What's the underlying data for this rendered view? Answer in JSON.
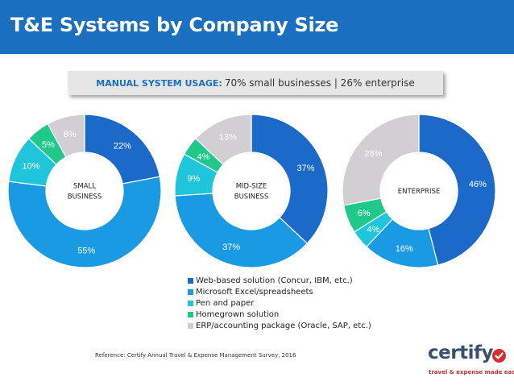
{
  "header": {
    "title": "T&E Systems by Company Size"
  },
  "banner": {
    "label": "MANUAL SYSTEM USAGE:",
    "text": "70% small businesses  |  26% enterprise"
  },
  "chart_data": [
    {
      "type": "pie",
      "variant": "donut",
      "title": "SMALL BUSINESS",
      "center_lines": [
        "SMALL",
        "BUSINESS"
      ],
      "categories": [
        "Web-based solution (Concur, IBM, etc.)",
        "Microsoft Excel/spreadsheets",
        "Pen and paper",
        "Homegrown solution",
        "ERP/accounting package (Oracle, SAP, etc.)"
      ],
      "values": [
        22,
        55,
        10,
        5,
        8
      ],
      "labels": [
        "22%",
        "55%",
        "10%",
        "5%",
        "8%"
      ]
    },
    {
      "type": "pie",
      "variant": "donut",
      "title": "MID-SIZE BUSINESS",
      "center_lines": [
        "MID-SIZE",
        "BUSINESS"
      ],
      "categories": [
        "Web-based solution (Concur, IBM, etc.)",
        "Microsoft Excel/spreadsheets",
        "Pen and paper",
        "Homegrown solution",
        "ERP/accounting package (Oracle, SAP, etc.)"
      ],
      "values": [
        37,
        37,
        9,
        4,
        13
      ],
      "labels": [
        "37%",
        "37%",
        "9%",
        "4%",
        "13%"
      ]
    },
    {
      "type": "pie",
      "variant": "donut",
      "title": "ENTERPRISE",
      "center_lines": [
        "ENTERPRISE"
      ],
      "categories": [
        "Web-based solution (Concur, IBM, etc.)",
        "Microsoft Excel/spreadsheets",
        "Pen and paper",
        "Homegrown solution",
        "ERP/accounting package (Oracle, SAP, etc.)"
      ],
      "values": [
        46,
        16,
        4,
        6,
        28
      ],
      "labels": [
        "46%",
        "16%",
        "4%",
        "6%",
        "28%"
      ]
    }
  ],
  "legend": {
    "items": [
      {
        "label": "Web-based solution (Concur, IBM, etc.)",
        "color": "#1b6ac9"
      },
      {
        "label": "Microsoft Excel/spreadsheets",
        "color": "#1a9ae3"
      },
      {
        "label": "Pen and paper",
        "color": "#1ec5db"
      },
      {
        "label": "Homegrown solution",
        "color": "#20c98a"
      },
      {
        "label": "ERP/accounting package (Oracle, SAP, etc.)",
        "color": "#d2cfd3"
      }
    ]
  },
  "reference": "Reference: Certify Annual Travel & Expense Management Survey, 2016",
  "logo": {
    "word": "certify",
    "tagline": "travel & expense made easy"
  }
}
